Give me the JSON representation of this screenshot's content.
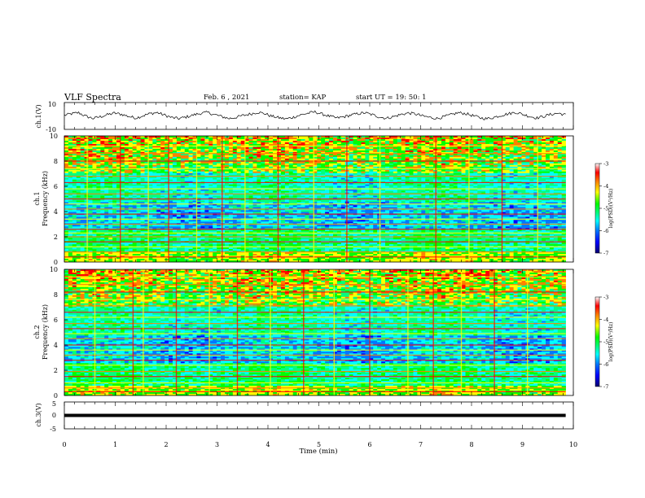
{
  "header": {
    "title": "VLF Spectra",
    "date": "Feb. 6 , 2021",
    "station": "station= KAP",
    "start": "start UT = 19: 50: 1"
  },
  "colors": {
    "spectrogram_map": [
      "#08006e",
      "#0000ff",
      "#0078ff",
      "#00ffff",
      "#00ff7f",
      "#00ff00",
      "#ffff00",
      "#ff8000",
      "#ff0000",
      "#ffffff"
    ],
    "line": "#000000"
  },
  "chart_data": [
    {
      "id": "ch1-waveform",
      "type": "line",
      "ylabel": "ch.1(V)",
      "ylim": [
        -10,
        10
      ],
      "yticks": [
        "10",
        "-10"
      ],
      "xlim": [
        0,
        10
      ],
      "series": [
        {
          "x_start": 0,
          "x_end": 9.85,
          "values": [
            0.5,
            1.6,
            2.4,
            -0.2,
            -1.8,
            -0.6,
            0.9,
            2.1,
            1.2,
            -0.4,
            -1.5,
            0.2,
            1.8,
            2.5,
            0.6,
            -1.2,
            -2.0,
            -0.8,
            0.7,
            1.9,
            2.6,
            1.0,
            -0.5,
            -1.9,
            -1.0,
            0.4,
            1.5,
            2.8,
            1.7,
            -0.3,
            -1.4,
            -2.2,
            -0.9,
            0.8,
            2.0,
            3.0,
            1.4,
            -0.2,
            -1.6,
            -0.7,
            0.6,
            1.7,
            2.3,
            0.9,
            -0.8,
            -1.7,
            -0.4,
            1.1,
            2.2,
            1.5,
            0.0,
            -1.1,
            -1.9,
            -0.6,
            0.9,
            2.4,
            1.8,
            0.3,
            -1.3,
            -2.1,
            -1.0,
            0.5,
            1.6,
            2.7,
            1.2,
            -0.4,
            -1.5,
            -0.2,
            1.3,
            2.0,
            0.8
          ]
        }
      ]
    },
    {
      "id": "ch1-spectrogram",
      "type": "heatmap",
      "ylabel": "ch.1\nFrequency (kHz)",
      "yticks": [
        "0",
        "2",
        "4",
        "6",
        "8",
        "10"
      ],
      "ylim": [
        0,
        10
      ],
      "xlim": [
        0,
        10
      ],
      "data_end_min": 9.85,
      "colorbar": {
        "label": "log(PSD)(V²/Hz)",
        "ticks": [
          "-3",
          "-4",
          "-5",
          "-6",
          "-7"
        ],
        "range": [
          -7,
          -3
        ]
      },
      "lines_khz": [
        0.4,
        0.8,
        1.2,
        1.6,
        2.0,
        2.3,
        2.6,
        3.0,
        3.4,
        3.8,
        4.2,
        4.6,
        5.0,
        5.4,
        5.8,
        6.3,
        6.8,
        7.4,
        8.0,
        8.6,
        9.2
      ],
      "spikes_min": [
        0.45,
        1.1,
        1.65,
        2.05,
        2.6,
        3.1,
        3.55,
        4.2,
        4.9,
        5.55,
        6.2,
        7.3,
        7.95,
        8.6,
        9.3
      ]
    },
    {
      "id": "ch2-spectrogram",
      "type": "heatmap",
      "ylabel": "ch.2\nFrequency (kHz)",
      "yticks": [
        "0",
        "2",
        "4",
        "6",
        "8",
        "10"
      ],
      "ylim": [
        0,
        10
      ],
      "xlim": [
        0,
        10
      ],
      "data_end_min": 9.85,
      "colorbar": {
        "label": "log(PSD)(V²/Hz)",
        "ticks": [
          "-3",
          "-4",
          "-5",
          "-6",
          "-7"
        ],
        "range": [
          -7,
          -3
        ]
      },
      "lines_khz": [
        0.3,
        0.6,
        1.0,
        1.5,
        1.9,
        2.4,
        2.8,
        3.2,
        3.6,
        4.0,
        4.5,
        4.9,
        5.3,
        5.7,
        6.2,
        6.6,
        7.1,
        7.6,
        8.2,
        8.8,
        9.4
      ],
      "spikes_min": [
        0.6,
        1.35,
        1.55,
        2.2,
        2.85,
        3.4,
        4.05,
        4.7,
        5.3,
        6.0,
        6.75,
        7.25,
        7.8,
        8.45,
        9.1
      ]
    },
    {
      "id": "ch3-waveform",
      "type": "line",
      "ylabel": "ch.3(V)",
      "ylim": [
        -5,
        5
      ],
      "yticks": [
        "5",
        "0",
        "-5"
      ],
      "xlim": [
        0,
        10
      ],
      "xlabel": "Time (min)",
      "xticks": [
        "0",
        "1",
        "2",
        "3",
        "4",
        "5",
        "6",
        "7",
        "8",
        "9",
        "10"
      ],
      "series": [
        {
          "x_start": 0,
          "x_end": 9.85,
          "level": 0,
          "band": 0.6
        }
      ]
    }
  ]
}
